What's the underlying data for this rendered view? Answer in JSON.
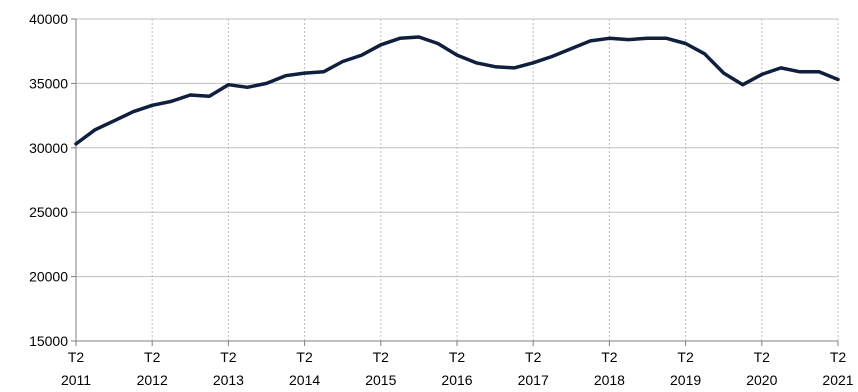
{
  "chart_data": {
    "type": "line",
    "title": "",
    "xlabel": "",
    "ylabel": "",
    "ylim": [
      15000,
      40000
    ],
    "y_ticks": [
      15000,
      20000,
      25000,
      30000,
      35000,
      40000
    ],
    "x_ticks": [
      {
        "index": 0,
        "line1": "T2",
        "line2": "2011"
      },
      {
        "index": 4,
        "line1": "T2",
        "line2": "2012"
      },
      {
        "index": 8,
        "line1": "T2",
        "line2": "2013"
      },
      {
        "index": 12,
        "line1": "T2",
        "line2": "2014"
      },
      {
        "index": 16,
        "line1": "T2",
        "line2": "2015"
      },
      {
        "index": 20,
        "line1": "T2",
        "line2": "2016"
      },
      {
        "index": 24,
        "line1": "T2",
        "line2": "2017"
      },
      {
        "index": 28,
        "line1": "T2",
        "line2": "2018"
      },
      {
        "index": 32,
        "line1": "T2",
        "line2": "2019"
      },
      {
        "index": 36,
        "line1": "T2",
        "line2": "2020"
      },
      {
        "index": 40,
        "line1": "T2",
        "line2": "2021"
      }
    ],
    "grid": {
      "horizontal": true,
      "vertical": true
    },
    "legend": "none",
    "series": [
      {
        "color": "#0f1f3d",
        "values": [
          30300,
          31400,
          32100,
          32800,
          33300,
          33600,
          34100,
          34000,
          34900,
          34700,
          35000,
          35600,
          35800,
          35900,
          36700,
          37200,
          38000,
          38500,
          38600,
          38100,
          37200,
          36600,
          36300,
          36200,
          36600,
          37100,
          37700,
          38300,
          38500,
          38400,
          38500,
          38500,
          38100,
          37300,
          35800,
          34900,
          35700,
          36200,
          35900,
          35900,
          35300
        ]
      }
    ]
  }
}
